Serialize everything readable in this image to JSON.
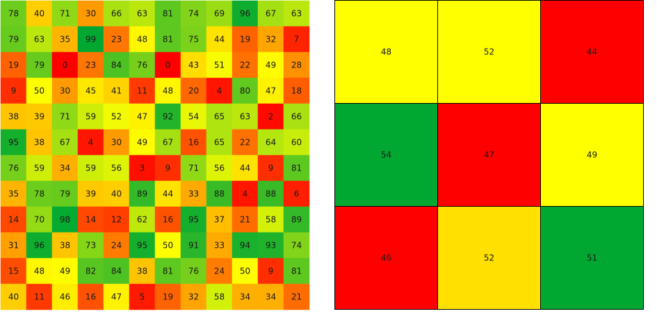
{
  "chart_data": [
    {
      "type": "heatmap",
      "rows": 12,
      "cols": 12,
      "color_scale": "red-yellow-green",
      "colors": {
        "low": "#ff0000",
        "mid": "#ffff00",
        "high": "#00a832"
      },
      "grid_lines": false,
      "values": [
        [
          78,
          40,
          71,
          30,
          66,
          63,
          81,
          74,
          69,
          96,
          67,
          63
        ],
        [
          79,
          63,
          35,
          99,
          23,
          48,
          81,
          75,
          44,
          19,
          32,
          7
        ],
        [
          19,
          79,
          0,
          23,
          84,
          76,
          0,
          43,
          51,
          22,
          49,
          28
        ],
        [
          9,
          50,
          30,
          45,
          41,
          11,
          48,
          20,
          4,
          80,
          47,
          18
        ],
        [
          38,
          39,
          71,
          59,
          52,
          47,
          92,
          54,
          65,
          63,
          2,
          66
        ],
        [
          95,
          38,
          67,
          4,
          30,
          49,
          67,
          16,
          65,
          22,
          64,
          60
        ],
        [
          76,
          59,
          34,
          59,
          56,
          3,
          9,
          71,
          56,
          44,
          9,
          81
        ],
        [
          35,
          78,
          79,
          39,
          40,
          89,
          44,
          33,
          88,
          4,
          88,
          6
        ],
        [
          14,
          70,
          98,
          14,
          12,
          62,
          16,
          95,
          37,
          21,
          58,
          89
        ],
        [
          31,
          96,
          38,
          73,
          24,
          95,
          50,
          91,
          33,
          94,
          93,
          74
        ],
        [
          15,
          48,
          49,
          82,
          84,
          38,
          81,
          76,
          24,
          50,
          9,
          81
        ],
        [
          40,
          11,
          46,
          16,
          47,
          5,
          19,
          32,
          58,
          34,
          34,
          21
        ]
      ]
    },
    {
      "type": "heatmap",
      "rows": 3,
      "cols": 3,
      "color_scale": "discrete",
      "colors": {
        "red": "#ff0000",
        "yellow": "#ffff00",
        "gold": "#ffe000",
        "green": "#00a832",
        "border": "#000000"
      },
      "grid_lines": true,
      "values": [
        [
          48,
          52,
          44
        ],
        [
          54,
          47,
          49
        ],
        [
          46,
          52,
          51
        ]
      ],
      "cell_colors": [
        [
          "yellow",
          "yellow",
          "red"
        ],
        [
          "green",
          "red",
          "yellow"
        ],
        [
          "red",
          "gold",
          "green"
        ]
      ]
    }
  ]
}
